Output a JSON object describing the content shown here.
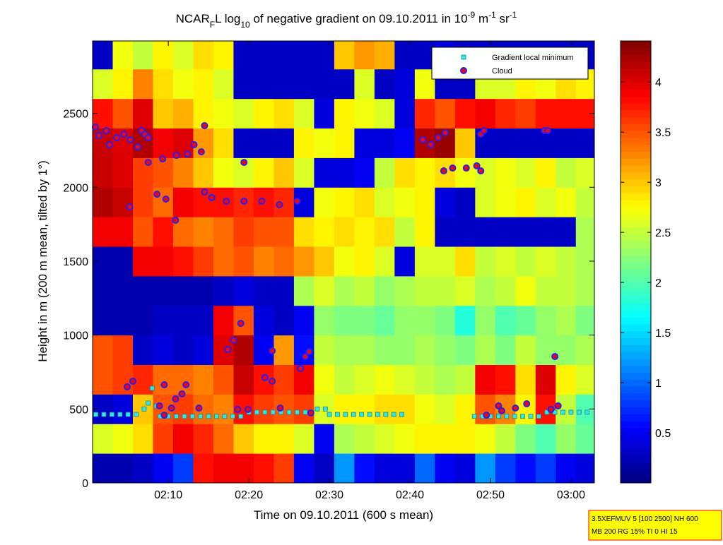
{
  "chart_data": {
    "type": "heatmap",
    "title_parts": [
      "NCAR",
      "F",
      "L log",
      "10",
      " of negative gradient on 09.10.2011 in 10",
      "-9",
      " m",
      "-1",
      " sr",
      "-1"
    ],
    "title_styles": [
      "normal",
      "sub",
      "normal",
      "sub",
      "normal",
      "sup",
      "normal",
      "sup",
      "normal",
      "sup"
    ],
    "x_label": "Time on 09.10.2011 (600 s mean)",
    "y_label": "Height in m (200 m mean, tilted by 1°)",
    "xlim": [
      0.6,
      62.9
    ],
    "xticks": [
      {
        "value": 10,
        "label": "02:10"
      },
      {
        "value": 20,
        "label": "02:20"
      },
      {
        "value": 30,
        "label": "02:30"
      },
      {
        "value": 40,
        "label": "02:40"
      },
      {
        "value": 50,
        "label": "02:50"
      },
      {
        "value": 60,
        "label": "03:00"
      }
    ],
    "ylim": [
      0,
      2990
    ],
    "yticks": [
      0,
      500,
      1000,
      1500,
      2000,
      2500
    ],
    "clim": [
      0,
      4.41
    ],
    "cticks": [
      0.5,
      1,
      1.5,
      2,
      2.5,
      3,
      3.5,
      4
    ],
    "colormap": "jet",
    "xbins": [
      0.6,
      3.1,
      5.6,
      8.1,
      10.6,
      13.1,
      15.6,
      18.1,
      20.6,
      23.1,
      25.6,
      28.1,
      30.6,
      33.1,
      35.6,
      38.1,
      40.6,
      43.1,
      45.6,
      48.1,
      50.6,
      53.1,
      55.6,
      58.1,
      60.6,
      62.9
    ],
    "ybins": [
      0,
      200,
      400,
      600,
      800,
      1000,
      1200,
      1400,
      1600,
      1800,
      2000,
      2200,
      2400,
      2600,
      2800,
      2990
    ],
    "z": [
      [
        0.2,
        0.2,
        0.3,
        0.5,
        0.8,
        3.8,
        3.9,
        3.9,
        3.8,
        3.6,
        0.5,
        0.3,
        1.2,
        0.6,
        0.4,
        0.4,
        1.0,
        0.5,
        0.4,
        1.2,
        0.8,
        0.6,
        0.8,
        0.5,
        0.4
      ],
      [
        2.6,
        2.7,
        2.9,
        3.6,
        3.9,
        3.7,
        3.4,
        3.0,
        2.8,
        2.8,
        2.6,
        0.5,
        2.4,
        2.5,
        2.6,
        2.7,
        2.8,
        2.8,
        2.8,
        2.7,
        2.5,
        2.2,
        2.0,
        2.3,
        2.1
      ],
      [
        0.3,
        0.4,
        3.0,
        3.5,
        3.6,
        3.4,
        3.3,
        3.8,
        3.6,
        3.5,
        3.6,
        2.6,
        2.8,
        2.8,
        2.9,
        2.9,
        2.7,
        2.6,
        2.8,
        3.5,
        3.3,
        2.8,
        3.8,
        2.5,
        2.0
      ],
      [
        3.5,
        3.6,
        3.7,
        3.4,
        3.4,
        3.3,
        3.5,
        4.1,
        3.8,
        3.6,
        3.9,
        2.7,
        2.5,
        2.6,
        2.7,
        2.6,
        2.5,
        2.4,
        2.5,
        3.9,
        3.8,
        2.9,
        4.0,
        2.8,
        2.6
      ],
      [
        3.5,
        3.6,
        0.3,
        0.4,
        0.3,
        0.4,
        4.0,
        4.2,
        0.5,
        3.2,
        0.6,
        2.5,
        2.4,
        2.4,
        2.3,
        2.3,
        2.4,
        2.3,
        2.2,
        2.4,
        2.2,
        2.5,
        2.3,
        2.3,
        2.4
      ],
      [
        0.2,
        0.2,
        0.2,
        0.3,
        0.3,
        0.3,
        3.9,
        3.5,
        0.4,
        0.3,
        0.5,
        2.3,
        2.2,
        2.2,
        2.1,
        2.3,
        2.3,
        2.2,
        1.8,
        2.3,
        2.0,
        2.1,
        2.3,
        2.4,
        2.2
      ],
      [
        0.2,
        0.2,
        0.2,
        0.2,
        0.2,
        0.2,
        0.3,
        0.4,
        0.3,
        0.3,
        2.4,
        2.6,
        2.4,
        2.5,
        2.3,
        2.4,
        2.5,
        2.5,
        2.6,
        2.4,
        2.5,
        2.7,
        2.5,
        2.5,
        2.4
      ],
      [
        0.2,
        0.2,
        3.9,
        3.9,
        3.8,
        3.6,
        3.4,
        3.5,
        3.3,
        3.4,
        3.2,
        3.0,
        2.7,
        2.8,
        2.6,
        0.4,
        2.6,
        2.6,
        2.9,
        2.5,
        2.6,
        2.5,
        2.6,
        2.5,
        2.4
      ],
      [
        3.9,
        3.9,
        3.5,
        3.8,
        3.4,
        3.3,
        3.4,
        3.6,
        3.5,
        3.5,
        2.9,
        2.8,
        2.9,
        2.8,
        2.9,
        2.5,
        2.8,
        0.3,
        0.3,
        0.3,
        0.3,
        0.3,
        0.3,
        0.3,
        2.4
      ],
      [
        4.2,
        4.1,
        3.6,
        3.4,
        3.9,
        3.8,
        3.8,
        3.7,
        3.8,
        3.7,
        0.4,
        2.7,
        2.8,
        2.9,
        2.6,
        2.7,
        2.8,
        0.4,
        0.3,
        2.6,
        2.7,
        2.8,
        2.6,
        2.7,
        2.5
      ],
      [
        4.1,
        4.0,
        3.6,
        3.5,
        3.3,
        3.0,
        2.7,
        2.6,
        2.8,
        3.0,
        2.6,
        0.4,
        0.4,
        0.5,
        2.5,
        2.9,
        2.8,
        2.9,
        2.7,
        2.6,
        2.7,
        2.6,
        2.8,
        2.5,
        2.6
      ],
      [
        4.1,
        4.0,
        4.2,
        3.9,
        4.0,
        3.2,
        2.9,
        0.3,
        0.3,
        0.3,
        2.8,
        2.7,
        2.8,
        0.4,
        0.4,
        0.5,
        4.2,
        4.3,
        3.0,
        0.3,
        0.3,
        0.3,
        0.3,
        0.3,
        0.3
      ],
      [
        3.8,
        3.5,
        4.0,
        3.0,
        3.1,
        2.8,
        2.7,
        2.6,
        2.8,
        2.9,
        2.6,
        0.4,
        2.8,
        2.7,
        2.6,
        0.4,
        3.7,
        3.5,
        3.8,
        3.9,
        3.7,
        3.6,
        3.8,
        3.8,
        3.8
      ],
      [
        2.6,
        2.8,
        3.3,
        2.9,
        2.7,
        2.8,
        2.6,
        0.3,
        0.3,
        0.3,
        0.3,
        0.3,
        0.3,
        2.6,
        0.3,
        0.4,
        2.7,
        0.3,
        0.3,
        2.6,
        2.6,
        2.8,
        2.7,
        2.9,
        2.8
      ],
      [
        0.3,
        2.7,
        2.5,
        2.8,
        2.6,
        2.9,
        2.8,
        0.3,
        0.3,
        0.3,
        0.3,
        0.3,
        3.0,
        3.2,
        3.1,
        0.3,
        0.3,
        0.4,
        0.3,
        0.3,
        0.3,
        0.3,
        0.3,
        0.3,
        0.3
      ]
    ],
    "series": [
      {
        "name": "Gradient local minimum",
        "marker": "square",
        "color": "#33e6e6",
        "edge": "#1a8a8a",
        "x": [
          1,
          2,
          3,
          4,
          5,
          6,
          7,
          7.5,
          8,
          8.5,
          9,
          10,
          11,
          12,
          13,
          14,
          15,
          16,
          17,
          18,
          19,
          20,
          21,
          22,
          23,
          24,
          25,
          26,
          27,
          28.5,
          29.5,
          30,
          31,
          32,
          33,
          34,
          35,
          36,
          37,
          38,
          39,
          48,
          49,
          50,
          51,
          52,
          53,
          54,
          55,
          56,
          57,
          58,
          59,
          60,
          61,
          62
        ],
        "y": [
          463,
          463,
          463,
          463,
          463,
          463,
          500,
          540,
          640,
          520,
          450,
          450,
          450,
          450,
          450,
          450,
          450,
          450,
          450,
          450,
          450,
          478,
          478,
          478,
          478,
          478,
          478,
          478,
          478,
          500,
          500,
          463,
          463,
          463,
          463,
          463,
          463,
          463,
          463,
          463,
          463,
          450,
          450,
          450,
          450,
          450,
          450,
          450,
          450,
          450,
          478,
          478,
          478,
          478,
          478,
          478
        ]
      },
      {
        "name": "Cloud",
        "marker": "circle",
        "color": "#ff0000",
        "edge": "#2020ff",
        "x": [
          0.95,
          1.4,
          2.3,
          2.7,
          3.6,
          4.5,
          5.3,
          6.2,
          6.7,
          7.1,
          7.5,
          7.5,
          9.3,
          11.0,
          12.4,
          13.2,
          14.1,
          14.5,
          5.2,
          8.6,
          9.7,
          10.9,
          14.5,
          15.4,
          17.2,
          19.4,
          19.4,
          21.6,
          23.8,
          26.0,
          41.6,
          42.6,
          43.5,
          44.4,
          44.2,
          45.3,
          47.0,
          48.3,
          48.8,
          48.8,
          49.2,
          56.7,
          57.1,
          4.9,
          5.6,
          9.5,
          8.9,
          9.5,
          10.4,
          10.9,
          11.7,
          12.2,
          13.8,
          17.4,
          18.1,
          19.0,
          18.6,
          19.9,
          22.0,
          22.9,
          22.9,
          23.9,
          26.4,
          27.0,
          27.5,
          27.7,
          49.5,
          51.0,
          51.4,
          53.1,
          54.5,
          57.5,
          58.0,
          58.4
        ],
        "y": [
          2407,
          2350,
          2383,
          2288,
          2335,
          2359,
          2321,
          2273,
          2383,
          2359,
          2335,
          2168,
          2192,
          2216,
          2225,
          2288,
          2240,
          2417,
          1867,
          1953,
          1920,
          1777,
          1968,
          1930,
          1906,
          2168,
          1906,
          1906,
          1882,
          1906,
          2321,
          2288,
          2335,
          2369,
          2111,
          2130,
          2130,
          2145,
          2111,
          2359,
          2383,
          2383,
          2383,
          650,
          688,
          664,
          521,
          458,
          506,
          568,
          602,
          664,
          506,
          903,
          965,
          1079,
          497,
          497,
          712,
          893,
          688,
          506,
          774,
          855,
          888,
          473,
          458,
          521,
          487,
          506,
          535,
          497,
          855,
          521
        ]
      }
    ],
    "legend": "upper right",
    "footnote": [
      "3.5XEFMUV 5 [100 2500] NH 600",
      "MB 200 RG 15% TI 0 HI 15"
    ]
  }
}
